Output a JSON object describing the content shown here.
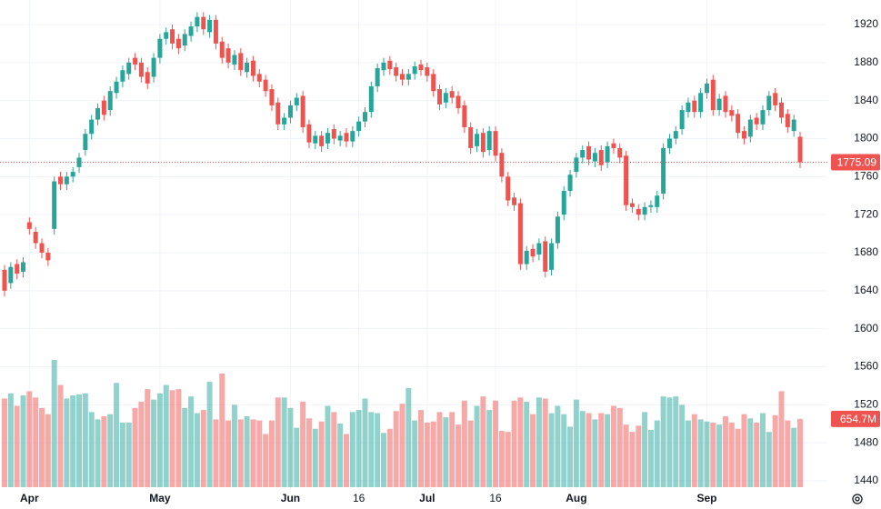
{
  "chart_data": {
    "type": "candlestick",
    "categories": [
      null,
      null,
      null,
      null,
      "Apr",
      null,
      null,
      null,
      null,
      null,
      null,
      null,
      null,
      null,
      null,
      null,
      null,
      null,
      null,
      null,
      null,
      null,
      null,
      null,
      null,
      "May",
      null,
      null,
      null,
      null,
      null,
      null,
      null,
      null,
      null,
      null,
      null,
      null,
      null,
      null,
      null,
      null,
      null,
      null,
      null,
      null,
      "Jun",
      null,
      null,
      null,
      null,
      null,
      null,
      null,
      null,
      null,
      null,
      "16",
      null,
      null,
      null,
      null,
      null,
      null,
      null,
      null,
      null,
      null,
      "Jul",
      null,
      null,
      null,
      null,
      null,
      null,
      null,
      null,
      null,
      null,
      "16",
      null,
      null,
      null,
      null,
      null,
      null,
      null,
      null,
      null,
      null,
      null,
      null,
      "Aug",
      null,
      null,
      null,
      null,
      null,
      null,
      null,
      null,
      null,
      null,
      null,
      null,
      null,
      null,
      null,
      null,
      null,
      null,
      null,
      null,
      "Sep",
      null,
      null,
      null,
      null,
      null,
      null,
      null,
      null,
      null,
      null,
      null,
      null,
      null,
      null,
      null
    ],
    "open": [
      1662,
      1648,
      1668,
      1660,
      1712,
      1702,
      1690,
      1680,
      1705,
      1760,
      1752,
      1760,
      1770,
      1788,
      1805,
      1820,
      1840,
      1830,
      1848,
      1860,
      1868,
      1885,
      1880,
      1870,
      1865,
      1885,
      1905,
      1915,
      1905,
      1898,
      1908,
      1918,
      1928,
      1912,
      1925,
      1902,
      1895,
      1878,
      1890,
      1870,
      1882,
      1868,
      1862,
      1852,
      1838,
      1815,
      1822,
      1835,
      1845,
      1815,
      1795,
      1803,
      1795,
      1810,
      1798,
      1806,
      1797,
      1808,
      1818,
      1828,
      1855,
      1872,
      1882,
      1875,
      1868,
      1862,
      1868,
      1878,
      1875,
      1868,
      1852,
      1838,
      1850,
      1845,
      1835,
      1812,
      1792,
      1806,
      1788,
      1808,
      1785,
      1760,
      1738,
      1732,
      1668,
      1684,
      1678,
      1692,
      1662,
      1690,
      1720,
      1745,
      1765,
      1780,
      1792,
      1776,
      1788,
      1775,
      1795,
      1790,
      1782,
      1732,
      1726,
      1720,
      1728,
      1728,
      1742,
      1790,
      1800,
      1810,
      1828,
      1840,
      1828,
      1848,
      1862,
      1830,
      1845,
      1830,
      1826,
      1808,
      1802,
      1822,
      1815,
      1830,
      1848,
      1838,
      1826,
      1808,
      1802
    ],
    "high": [
      1667,
      1670,
      1673,
      1675,
      1717,
      1707,
      1695,
      1685,
      1760,
      1765,
      1765,
      1770,
      1785,
      1810,
      1825,
      1837,
      1845,
      1855,
      1865,
      1877,
      1885,
      1890,
      1885,
      1875,
      1890,
      1910,
      1917,
      1920,
      1910,
      1915,
      1923,
      1933,
      1933,
      1930,
      1930,
      1907,
      1900,
      1893,
      1895,
      1885,
      1887,
      1873,
      1867,
      1857,
      1843,
      1827,
      1840,
      1848,
      1850,
      1820,
      1808,
      1808,
      1811,
      1815,
      1808,
      1811,
      1813,
      1823,
      1833,
      1860,
      1879,
      1885,
      1887,
      1880,
      1873,
      1873,
      1881,
      1883,
      1880,
      1873,
      1857,
      1853,
      1855,
      1850,
      1840,
      1817,
      1810,
      1811,
      1813,
      1813,
      1790,
      1765,
      1743,
      1737,
      1687,
      1689,
      1695,
      1697,
      1695,
      1723,
      1750,
      1767,
      1785,
      1793,
      1797,
      1790,
      1793,
      1797,
      1800,
      1795,
      1787,
      1737,
      1731,
      1733,
      1735,
      1745,
      1795,
      1805,
      1813,
      1835,
      1843,
      1845,
      1853,
      1863,
      1867,
      1847,
      1850,
      1835,
      1831,
      1813,
      1825,
      1827,
      1835,
      1850,
      1853,
      1843,
      1831,
      1825,
      1807
    ],
    "low": [
      1634,
      1642,
      1652,
      1654,
      1699,
      1684,
      1674,
      1666,
      1699,
      1746,
      1746,
      1754,
      1764,
      1782,
      1799,
      1814,
      1819,
      1824,
      1842,
      1854,
      1862,
      1872,
      1859,
      1852,
      1859,
      1879,
      1899,
      1894,
      1889,
      1892,
      1902,
      1912,
      1909,
      1906,
      1894,
      1879,
      1874,
      1872,
      1866,
      1864,
      1860,
      1854,
      1844,
      1829,
      1809,
      1809,
      1816,
      1829,
      1806,
      1790,
      1789,
      1786,
      1789,
      1794,
      1792,
      1791,
      1791,
      1802,
      1812,
      1822,
      1849,
      1866,
      1867,
      1860,
      1856,
      1856,
      1862,
      1866,
      1860,
      1844,
      1830,
      1832,
      1837,
      1826,
      1806,
      1784,
      1786,
      1780,
      1782,
      1776,
      1754,
      1729,
      1724,
      1662,
      1662,
      1670,
      1672,
      1654,
      1656,
      1684,
      1714,
      1739,
      1759,
      1774,
      1772,
      1770,
      1766,
      1769,
      1784,
      1774,
      1724,
      1722,
      1714,
      1714,
      1722,
      1722,
      1736,
      1784,
      1794,
      1804,
      1822,
      1822,
      1822,
      1842,
      1824,
      1824,
      1822,
      1818,
      1800,
      1794,
      1796,
      1809,
      1809,
      1824,
      1829,
      1816,
      1806,
      1802,
      1769
    ],
    "close": [
      1640,
      1665,
      1658,
      1670,
      1705,
      1690,
      1680,
      1672,
      1755,
      1752,
      1760,
      1765,
      1780,
      1805,
      1820,
      1832,
      1825,
      1850,
      1860,
      1872,
      1880,
      1878,
      1865,
      1858,
      1885,
      1905,
      1912,
      1900,
      1895,
      1910,
      1918,
      1928,
      1915,
      1925,
      1900,
      1885,
      1880,
      1888,
      1872,
      1880,
      1866,
      1860,
      1850,
      1835,
      1815,
      1822,
      1835,
      1843,
      1812,
      1796,
      1803,
      1792,
      1806,
      1800,
      1803,
      1797,
      1808,
      1818,
      1828,
      1855,
      1874,
      1880,
      1873,
      1866,
      1862,
      1868,
      1876,
      1872,
      1866,
      1850,
      1836,
      1848,
      1843,
      1832,
      1812,
      1790,
      1805,
      1786,
      1808,
      1782,
      1760,
      1735,
      1730,
      1668,
      1682,
      1676,
      1690,
      1660,
      1690,
      1718,
      1745,
      1762,
      1780,
      1788,
      1778,
      1785,
      1772,
      1792,
      1790,
      1780,
      1730,
      1728,
      1720,
      1728,
      1730,
      1740,
      1790,
      1800,
      1808,
      1830,
      1838,
      1828,
      1848,
      1858,
      1830,
      1842,
      1828,
      1824,
      1806,
      1800,
      1820,
      1815,
      1830,
      1845,
      1835,
      1822,
      1812,
      1820,
      1775.09
    ],
    "volume": [
      850,
      900,
      780,
      880,
      920,
      860,
      760,
      700,
      1220,
      980,
      850,
      880,
      890,
      900,
      720,
      650,
      680,
      700,
      1000,
      620,
      620,
      760,
      820,
      940,
      840,
      900,
      980,
      930,
      940,
      760,
      870,
      710,
      740,
      1010,
      650,
      1090,
      640,
      790,
      650,
      680,
      650,
      640,
      510,
      640,
      860,
      860,
      760,
      570,
      820,
      660,
      560,
      630,
      780,
      720,
      610,
      510,
      720,
      740,
      850,
      720,
      710,
      520,
      560,
      730,
      800,
      950,
      640,
      740,
      620,
      630,
      720,
      670,
      720,
      600,
      830,
      640,
      780,
      870,
      740,
      830,
      540,
      530,
      830,
      860,
      820,
      700,
      860,
      850,
      710,
      780,
      700,
      580,
      840,
      730,
      710,
      650,
      710,
      700,
      780,
      760,
      600,
      530,
      590,
      720,
      550,
      640,
      870,
      860,
      870,
      790,
      640,
      700,
      650,
      630,
      620,
      600,
      680,
      620,
      560,
      700,
      660,
      620,
      710,
      530,
      690,
      920,
      640,
      570,
      654.7
    ],
    "volume_label": "654.7M",
    "last_price": 1775.09,
    "ylim": [
      1420,
      1940
    ],
    "yticks": [
      1440,
      1480,
      1520,
      1560,
      1600,
      1640,
      1680,
      1720,
      1760,
      1800,
      1840,
      1880,
      1920
    ],
    "up_color": "#26a69a",
    "down_color": "#ef5350",
    "grid": true
  }
}
